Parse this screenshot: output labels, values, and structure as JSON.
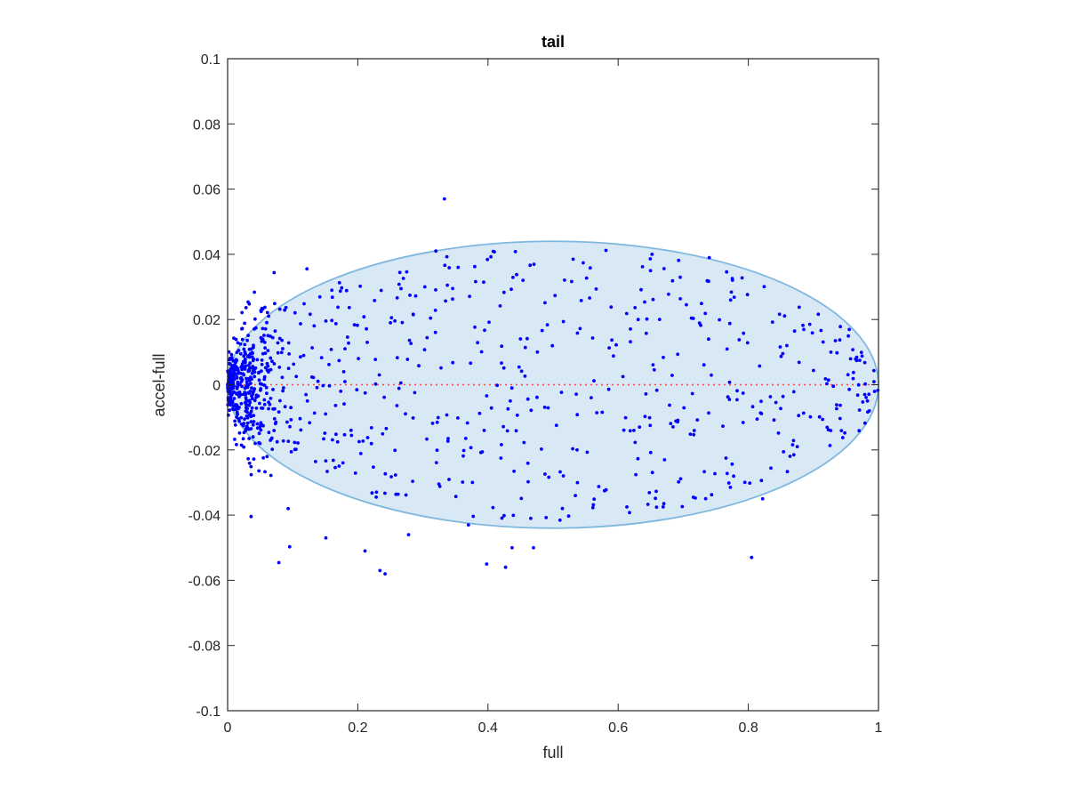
{
  "chart_data": {
    "type": "scatter",
    "title": "tail",
    "xlabel": "full",
    "ylabel": "accel-full",
    "xlim": [
      0,
      1
    ],
    "ylim": [
      -0.1,
      0.1
    ],
    "xticks": [
      0,
      0.2,
      0.4,
      0.6,
      0.8,
      1
    ],
    "xtick_labels": [
      "0",
      "0.2",
      "0.4",
      "0.6",
      "0.8",
      "1"
    ],
    "yticks": [
      -0.1,
      -0.08,
      -0.06,
      -0.04,
      -0.02,
      0,
      0.02,
      0.04,
      0.06,
      0.08,
      0.1
    ],
    "ytick_labels": [
      "-0.1",
      "-0.08",
      "-0.06",
      "-0.04",
      "-0.02",
      "0",
      "0.02",
      "0.04",
      "0.06",
      "0.08",
      "0.1"
    ],
    "grid": false,
    "colors": {
      "points": "#0000ff",
      "ellipse_fill": "#d9e8f5",
      "ellipse_edge": "#7fb8df",
      "zero_line": "#ff4444",
      "axes": "#262626"
    },
    "ellipse": {
      "center": [
        0.5,
        0
      ],
      "semi_axis_x": 0.5,
      "semi_axis_y": 0.044
    },
    "reference_line": {
      "y": 0,
      "x_range": [
        0,
        1
      ],
      "style": "dotted"
    },
    "outliers": [
      [
        0.333,
        0.057
      ],
      [
        0.32,
        0.041
      ],
      [
        0.74,
        0.039
      ],
      [
        0.652,
        0.04
      ],
      [
        0.093,
        -0.038
      ],
      [
        0.151,
        -0.047
      ],
      [
        0.211,
        -0.051
      ],
      [
        0.234,
        -0.057
      ],
      [
        0.242,
        -0.058
      ],
      [
        0.278,
        -0.046
      ],
      [
        0.37,
        -0.043
      ],
      [
        0.398,
        -0.055
      ],
      [
        0.427,
        -0.056
      ],
      [
        0.437,
        -0.05
      ],
      [
        0.47,
        -0.05
      ],
      [
        0.805,
        -0.053
      ],
      [
        0.822,
        -0.035
      ]
    ],
    "point_count_estimate": 950
  }
}
